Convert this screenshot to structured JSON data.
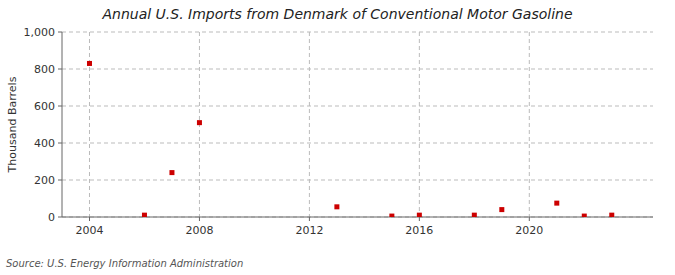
{
  "chart_data": {
    "type": "scatter",
    "title": "Annual U.S. Imports from Denmark of Conventional Motor Gasoline",
    "ylabel": "Thousand Barrels",
    "source": "Source: U.S. Energy Information Administration",
    "x": [
      2004,
      2006,
      2007,
      2008,
      2013,
      2015,
      2016,
      2018,
      2019,
      2021,
      2022,
      2023
    ],
    "values": [
      830,
      10,
      240,
      510,
      55,
      5,
      10,
      10,
      40,
      75,
      5,
      10
    ],
    "color": "#cc0000",
    "marker": "square",
    "xlim": [
      2003.0,
      2024.5
    ],
    "ylim": [
      0,
      1000
    ],
    "xticks": [
      2004,
      2008,
      2012,
      2016,
      2020
    ],
    "yticks": [
      0,
      200,
      400,
      600,
      800,
      {
        "value": 1000,
        "label": "1,000"
      }
    ],
    "grid": true
  }
}
